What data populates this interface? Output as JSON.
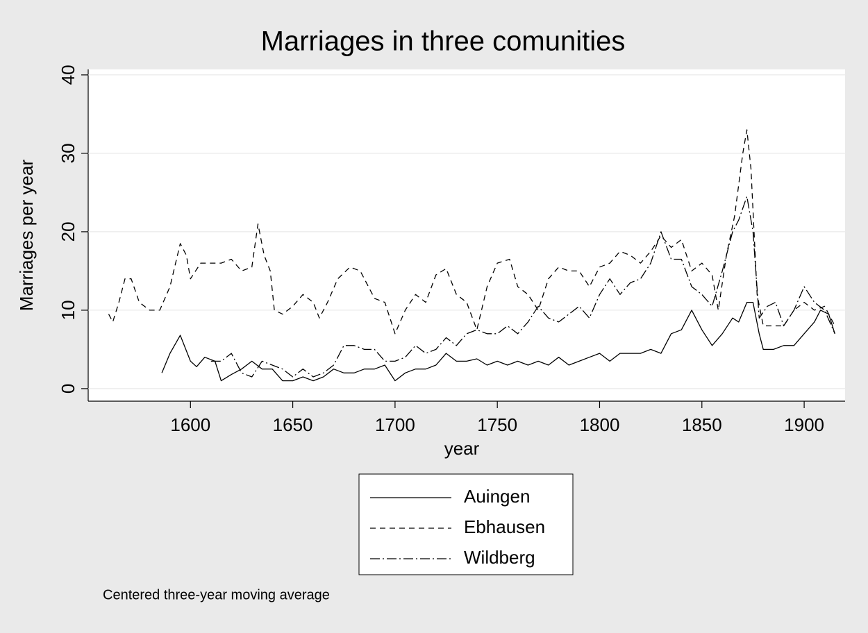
{
  "chart_data": {
    "type": "line",
    "title": "Marriages in three comunities",
    "x_label": "year",
    "y_label": "Marriages per year",
    "note": "Centered three-year moving average",
    "xlim": [
      1550,
      1920
    ],
    "ylim": [
      -1.6,
      40.7
    ],
    "xticks": [
      1600,
      1650,
      1700,
      1750,
      1800,
      1850,
      1900
    ],
    "yticks": [
      0,
      10,
      20,
      30,
      40
    ],
    "grid": true,
    "legend": "bottom",
    "series": [
      {
        "name": "Auingen",
        "color": "#000000",
        "dash": "none",
        "x": [
          1586,
          1590,
          1595,
          1600,
          1603,
          1607,
          1612,
          1615,
          1620,
          1625,
          1630,
          1635,
          1640,
          1645,
          1650,
          1655,
          1660,
          1665,
          1670,
          1675,
          1680,
          1685,
          1690,
          1695,
          1700,
          1705,
          1710,
          1715,
          1720,
          1725,
          1730,
          1735,
          1740,
          1745,
          1750,
          1755,
          1760,
          1765,
          1770,
          1775,
          1780,
          1785,
          1790,
          1795,
          1800,
          1805,
          1810,
          1815,
          1820,
          1825,
          1830,
          1835,
          1840,
          1845,
          1850,
          1855,
          1860,
          1865,
          1868,
          1872,
          1875,
          1878,
          1880,
          1885,
          1890,
          1895,
          1900,
          1905,
          1908,
          1912,
          1915
        ],
        "values": [
          2,
          4.5,
          6.8,
          3.5,
          2.8,
          4,
          3.5,
          1,
          1.8,
          2.5,
          3.5,
          2.5,
          2.5,
          1,
          1,
          1.5,
          1,
          1.5,
          2.5,
          2,
          2,
          2.5,
          2.5,
          3,
          1,
          2,
          2.5,
          2.5,
          3,
          4.5,
          3.5,
          3.5,
          3.8,
          3,
          3.5,
          3,
          3.5,
          3,
          3.5,
          3,
          4,
          3,
          3.5,
          4,
          4.5,
          3.5,
          4.5,
          4.5,
          4.5,
          5,
          4.5,
          7,
          7.5,
          10,
          7.5,
          5.5,
          7,
          9,
          8.5,
          11,
          11,
          7,
          5,
          5,
          5.5,
          5.5,
          7,
          8.5,
          10,
          9.5,
          7
        ]
      },
      {
        "name": "Ebhausen",
        "color": "#000000",
        "dash": "8 6",
        "x": [
          1560,
          1562,
          1565,
          1568,
          1571,
          1575,
          1580,
          1585,
          1590,
          1595,
          1598,
          1600,
          1605,
          1610,
          1615,
          1620,
          1625,
          1630,
          1633,
          1636,
          1639,
          1641,
          1645,
          1650,
          1655,
          1660,
          1663,
          1667,
          1672,
          1678,
          1683,
          1690,
          1695,
          1700,
          1705,
          1710,
          1715,
          1720,
          1725,
          1730,
          1735,
          1740,
          1745,
          1750,
          1756,
          1760,
          1765,
          1770,
          1775,
          1780,
          1785,
          1790,
          1795,
          1800,
          1805,
          1810,
          1815,
          1820,
          1825,
          1830,
          1835,
          1840,
          1845,
          1850,
          1855,
          1858,
          1862,
          1866,
          1870,
          1872,
          1874,
          1877,
          1880,
          1885,
          1890,
          1895,
          1900,
          1905,
          1910,
          1915
        ],
        "values": [
          9.5,
          8.5,
          11,
          14,
          14,
          11,
          10,
          10,
          13,
          18.5,
          17,
          14,
          16,
          16,
          16,
          16.5,
          15,
          15.5,
          21,
          17,
          15,
          10,
          9.5,
          10.5,
          12,
          11,
          9,
          11,
          14,
          15.5,
          15,
          11.5,
          11,
          7,
          10,
          12,
          11,
          14.5,
          15.3,
          12,
          11,
          7.5,
          13,
          16,
          16.5,
          13,
          12,
          10,
          14,
          15.5,
          15,
          15,
          13,
          15.5,
          16,
          17.5,
          17,
          16,
          17.5,
          19.5,
          18,
          19,
          15,
          16,
          14.5,
          10,
          17,
          22,
          30,
          33,
          28,
          12,
          8,
          8,
          8,
          10,
          11,
          10,
          10.5,
          8
        ]
      },
      {
        "name": "Wildberg",
        "color": "#000000",
        "dash": "14 4 2 4",
        "x": [
          1610,
          1615,
          1620,
          1625,
          1630,
          1635,
          1640,
          1645,
          1650,
          1655,
          1660,
          1665,
          1670,
          1675,
          1680,
          1685,
          1690,
          1695,
          1700,
          1705,
          1710,
          1715,
          1720,
          1725,
          1730,
          1735,
          1740,
          1745,
          1750,
          1755,
          1760,
          1765,
          1770,
          1775,
          1780,
          1785,
          1790,
          1795,
          1800,
          1805,
          1810,
          1815,
          1820,
          1825,
          1830,
          1835,
          1840,
          1845,
          1850,
          1855,
          1860,
          1865,
          1868,
          1872,
          1875,
          1878,
          1882,
          1886,
          1890,
          1895,
          1900,
          1905,
          1910,
          1915
        ],
        "values": [
          3.5,
          3.5,
          4.5,
          2,
          1.5,
          3.5,
          3,
          2.5,
          1.5,
          2.5,
          1.5,
          2,
          3,
          5.5,
          5.5,
          5,
          5,
          3.5,
          3.5,
          4,
          5.5,
          4.5,
          5,
          6.5,
          5.5,
          7,
          7.5,
          7,
          7,
          8,
          7,
          8.5,
          10.5,
          9,
          8.5,
          9.5,
          10.5,
          9,
          12,
          14,
          12,
          13.5,
          14,
          16,
          20,
          16.5,
          16.5,
          13,
          12,
          10.5,
          15,
          20,
          21.5,
          24.5,
          20,
          9,
          10.5,
          11,
          8,
          10,
          13,
          11,
          10,
          7
        ]
      }
    ]
  }
}
